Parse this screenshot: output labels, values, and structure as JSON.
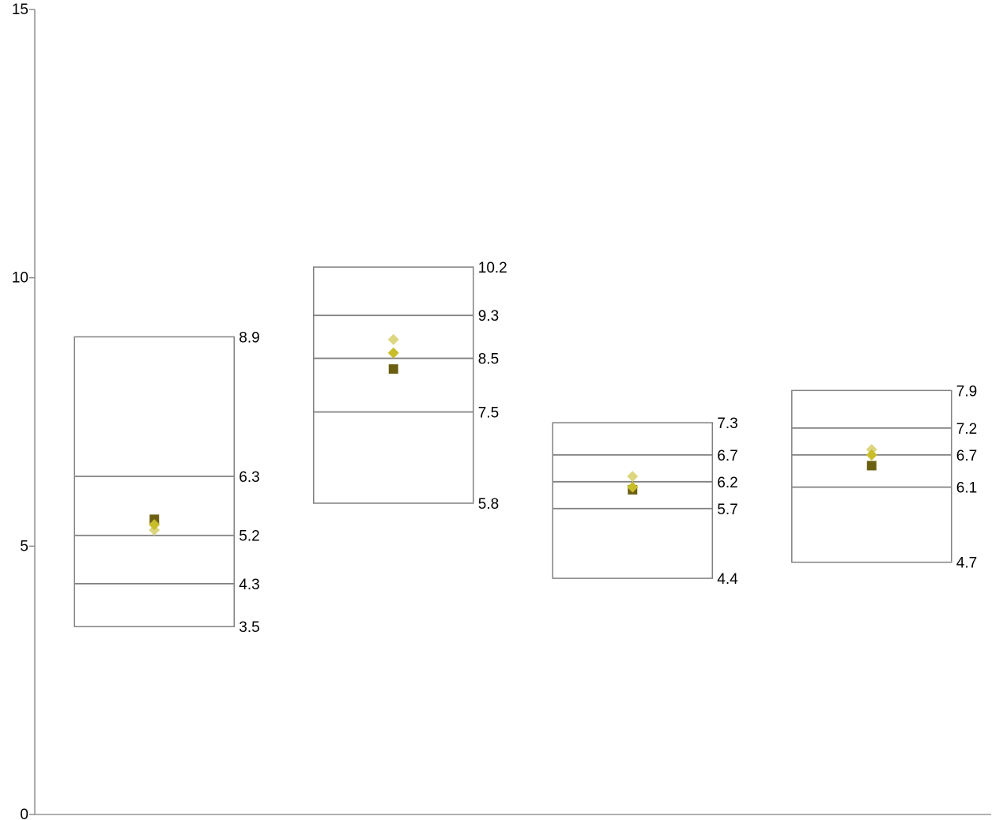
{
  "chart_data": {
    "type": "box",
    "title": "",
    "xlabel": "",
    "ylabel": "",
    "ylim": [
      0,
      15
    ],
    "yticks": [
      {
        "value": 0,
        "label": "0"
      },
      {
        "value": 5,
        "label": "5"
      },
      {
        "value": 10,
        "label": "10"
      },
      {
        "value": 15,
        "label": "15"
      }
    ],
    "grid": false,
    "legend": "none",
    "colors": {
      "box_outline": "#808080",
      "marker_square": "#6b6012",
      "marker_diamond": "#c8be2a",
      "marker_diamond_light": "#ddd680",
      "axis": "#808080"
    },
    "boxes": [
      {
        "levels": [
          3.5,
          4.3,
          5.2,
          6.3,
          8.9
        ],
        "labels": [
          "3.5",
          "4.3",
          "5.2",
          "6.3",
          "8.9"
        ],
        "markers": {
          "square": 5.5,
          "diamond": 5.4,
          "diamond_light": 5.3
        }
      },
      {
        "levels": [
          5.8,
          7.5,
          8.5,
          9.3,
          10.2
        ],
        "labels": [
          "5.8",
          "7.5",
          "8.5",
          "9.3",
          "10.2"
        ],
        "markers": {
          "square": 8.3,
          "diamond": 8.6,
          "diamond_light": 8.85
        }
      },
      {
        "levels": [
          4.4,
          5.7,
          6.2,
          6.7,
          7.3
        ],
        "labels": [
          "4.4",
          "5.7",
          "6.2",
          "6.7",
          "7.3"
        ],
        "markers": {
          "square": 6.05,
          "diamond": 6.1,
          "diamond_light": 6.3
        }
      },
      {
        "levels": [
          4.7,
          6.1,
          6.7,
          7.2,
          7.9
        ],
        "labels": [
          "4.7",
          "6.1",
          "6.7",
          "7.2",
          "7.9"
        ],
        "markers": {
          "square": 6.5,
          "diamond": 6.7,
          "diamond_light": 6.8
        }
      }
    ]
  }
}
